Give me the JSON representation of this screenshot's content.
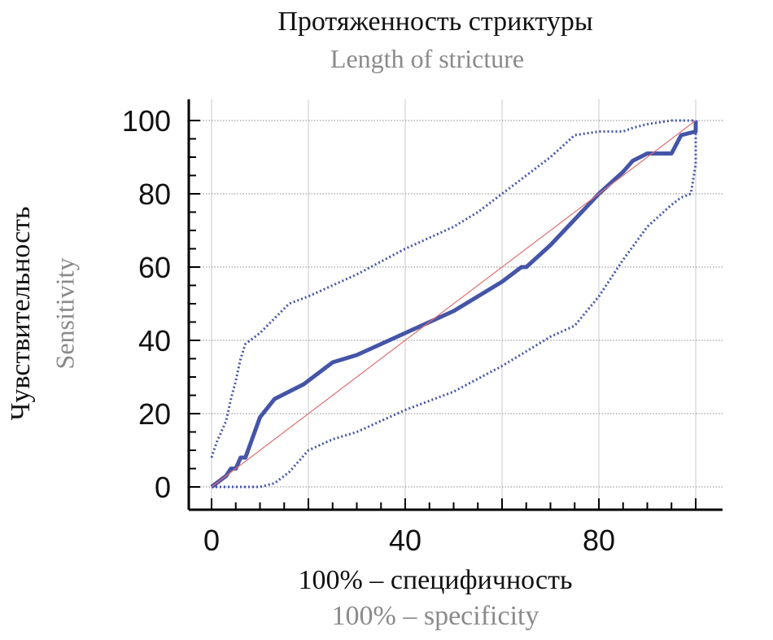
{
  "chart_data": {
    "type": "line",
    "title": "Протяженность стриктуры",
    "subtitle": "Length of stricture",
    "xlabel": "100% – специфичность",
    "xlabel_en": "100% – specificity",
    "ylabel": "Чувствительность",
    "ylabel_en": "Sensitivity",
    "xlim": [
      0,
      100
    ],
    "ylim": [
      0,
      100
    ],
    "x_ticks": [
      0,
      40,
      80
    ],
    "y_ticks": [
      0,
      20,
      40,
      60,
      80,
      100
    ],
    "grid": true,
    "colors": {
      "roc": "#4455a8",
      "ci": "#4455a8",
      "reference": "#e07070",
      "grid": "#c8c8c8"
    },
    "series": [
      {
        "style": "solid",
        "x": [
          0,
          1,
          3,
          4,
          5,
          6,
          7,
          10,
          13,
          16,
          19,
          25,
          30,
          35,
          40,
          45,
          50,
          55,
          60,
          63,
          64,
          65,
          70,
          75,
          80,
          85,
          87,
          90,
          95,
          97,
          100,
          100
        ],
        "y": [
          0,
          1,
          3,
          5,
          5,
          8,
          8,
          19,
          24,
          26,
          28,
          34,
          36,
          39,
          42,
          45,
          48,
          52,
          56,
          59,
          60,
          60,
          66,
          73,
          80,
          86,
          89,
          91,
          91,
          96,
          97,
          100
        ]
      },
      {
        "style": "dotted",
        "x": [
          0,
          1,
          2,
          3,
          4,
          5,
          6,
          7,
          10,
          13,
          16,
          20,
          30,
          40,
          50,
          55,
          60,
          65,
          70,
          75,
          80,
          85,
          87,
          90,
          95,
          98,
          99,
          100
        ],
        "y": [
          8,
          12,
          15,
          18,
          24,
          29,
          35,
          39,
          42,
          46,
          50,
          52,
          58,
          65,
          71,
          75,
          80,
          85,
          90,
          96,
          97,
          97,
          98,
          99,
          100,
          100,
          100,
          100
        ]
      },
      {
        "style": "dotted",
        "x": [
          0,
          3,
          6,
          10,
          13,
          16,
          20,
          25,
          30,
          40,
          50,
          60,
          65,
          70,
          75,
          80,
          85,
          90,
          95,
          97,
          99,
          100,
          100
        ],
        "y": [
          0,
          0,
          0,
          0,
          1,
          4,
          10,
          13,
          15,
          21,
          26,
          33,
          37,
          41,
          44,
          52,
          62,
          71,
          77,
          79,
          80,
          88,
          100
        ]
      },
      {
        "style": "reference",
        "x": [
          0,
          100
        ],
        "y": [
          0,
          100
        ]
      }
    ]
  }
}
